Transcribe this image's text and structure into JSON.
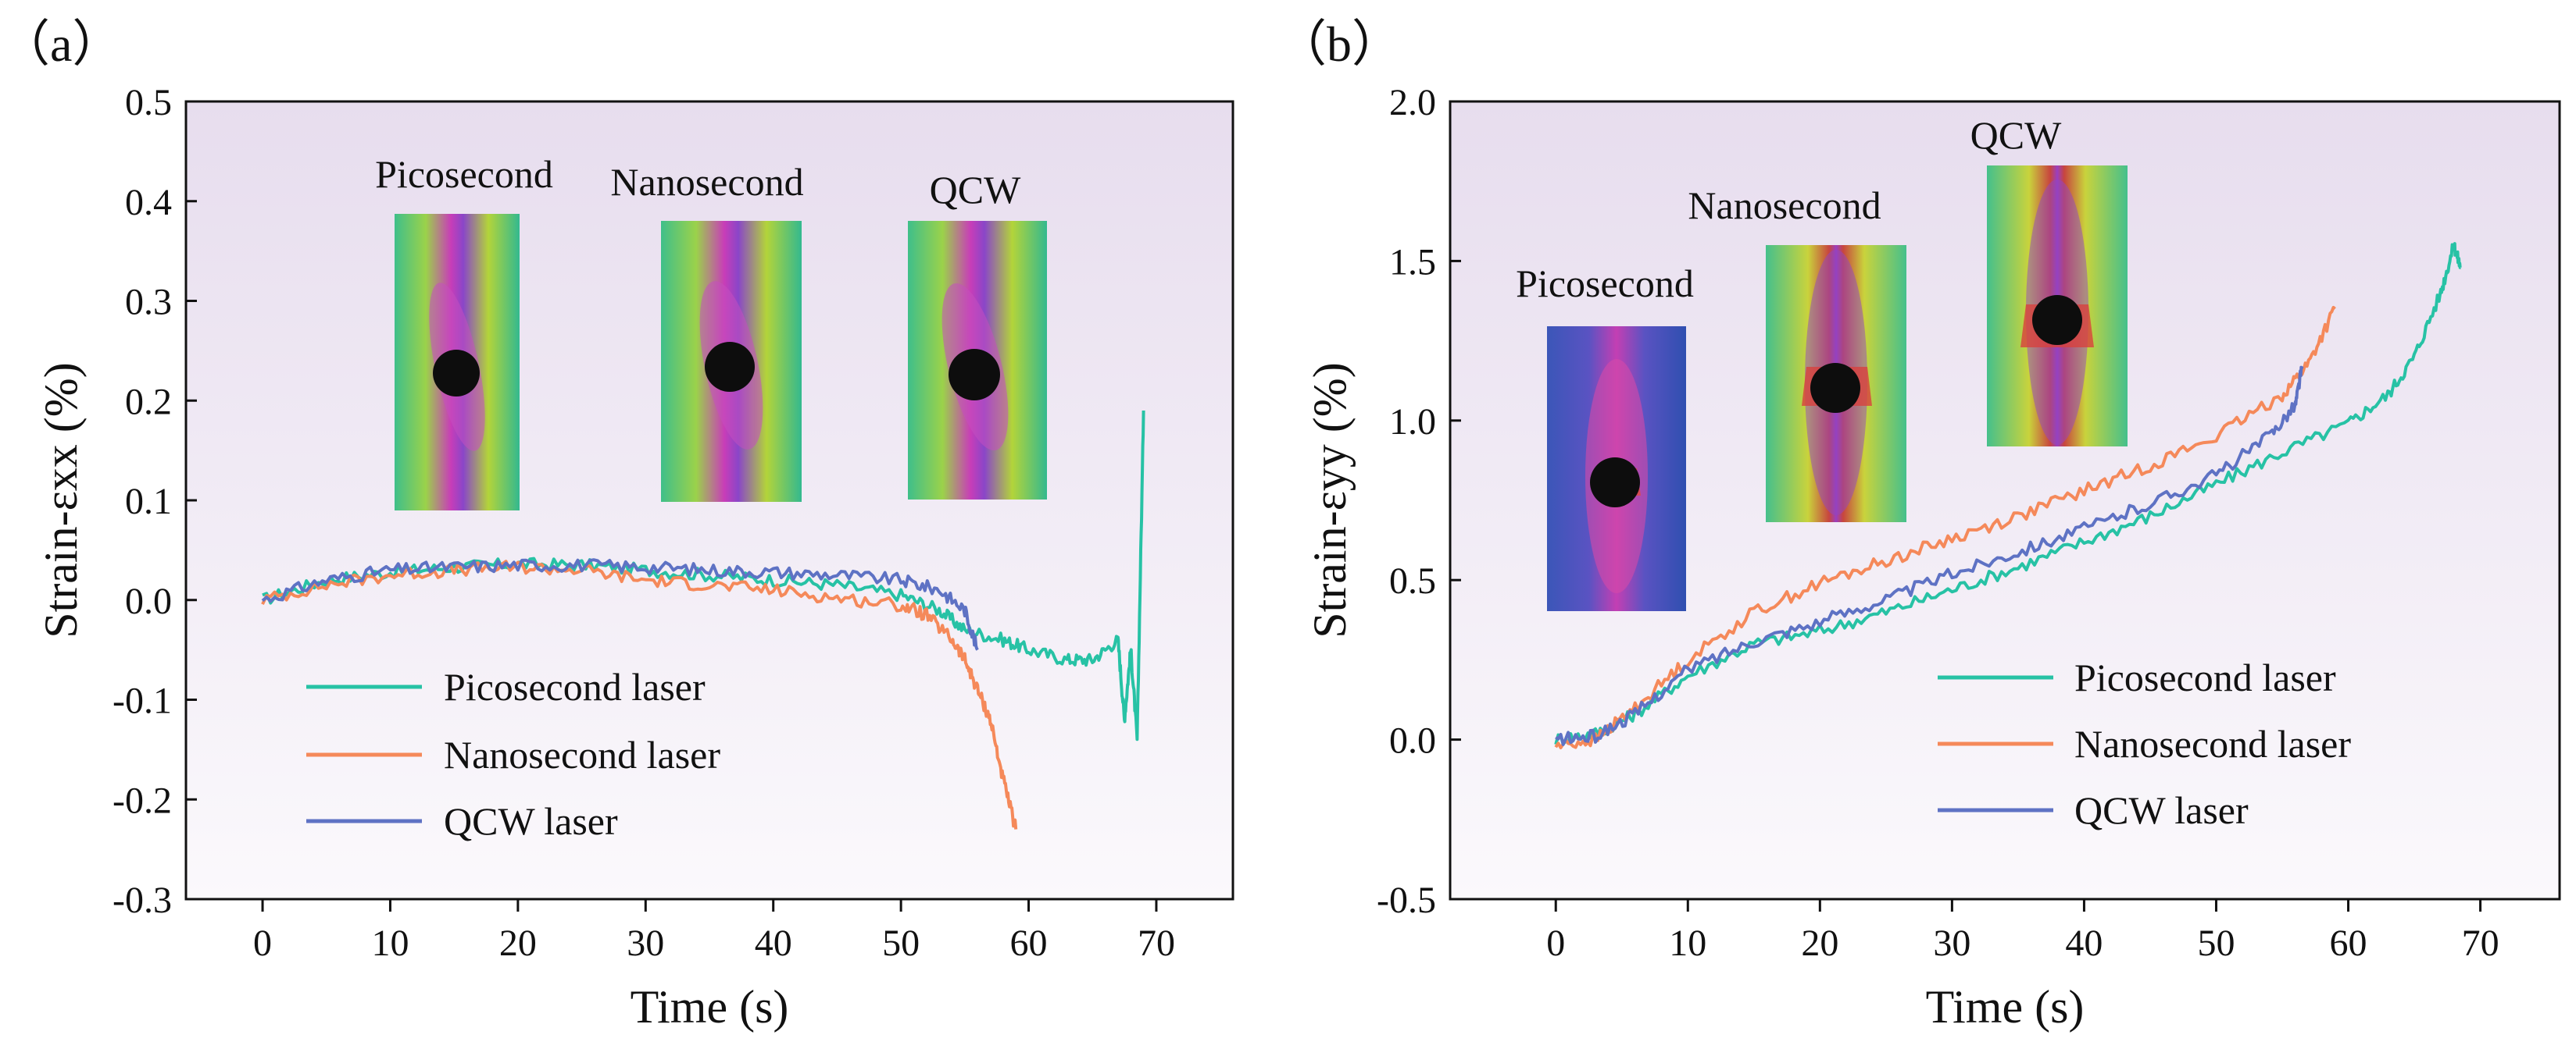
{
  "colors": {
    "picosecond": "#27C2A5",
    "nanosecond": "#F5895A",
    "qcw": "#5E72C4",
    "panel_top": "#E7DDEE",
    "panel_bottom": "#FBF9FC"
  },
  "chart_data": [
    {
      "type": "line",
      "panel_label": "（a）",
      "title": "",
      "xlabel": "Time (s)",
      "ylabel": "Strain-εxx (%)",
      "xlim": [
        -6,
        76
      ],
      "ylim": [
        -0.3,
        0.5
      ],
      "xticks": [
        0,
        10,
        20,
        30,
        40,
        50,
        60,
        70
      ],
      "yticks": [
        -0.3,
        -0.2,
        -0.1,
        0.0,
        0.1,
        0.2,
        0.3,
        0.4,
        0.5
      ],
      "xtick_labels": [
        "0",
        "10",
        "20",
        "30",
        "40",
        "50",
        "60",
        "70"
      ],
      "ytick_labels": [
        "-0.3",
        "-0.2",
        "-0.1",
        "0.0",
        "0.1",
        "0.2",
        "0.3",
        "0.4",
        "0.5"
      ],
      "legend": [
        "Picosecond laser",
        "Nanosecond laser",
        "QCW laser"
      ],
      "legend_position": "bottom-left",
      "inset_labels": [
        "Picosecond",
        "Nanosecond",
        "QCW"
      ],
      "series": [
        {
          "name": "Picosecond laser",
          "color_key": "picosecond",
          "x": [
            0,
            5,
            10,
            15,
            20,
            25,
            30,
            35,
            40,
            45,
            50,
            53,
            55,
            58,
            60,
            63,
            65,
            67,
            67.5,
            68,
            68.5,
            69
          ],
          "y": [
            0.0,
            0.02,
            0.028,
            0.033,
            0.036,
            0.035,
            0.03,
            0.025,
            0.02,
            0.015,
            0.005,
            -0.01,
            -0.03,
            -0.04,
            -0.05,
            -0.06,
            -0.06,
            -0.04,
            -0.12,
            -0.05,
            -0.14,
            0.19
          ]
        },
        {
          "name": "Nanosecond laser",
          "color_key": "nanosecond",
          "x": [
            0,
            5,
            10,
            15,
            20,
            25,
            30,
            35,
            40,
            45,
            50,
            52,
            54,
            55,
            56,
            57,
            58,
            59
          ],
          "y": [
            0.0,
            0.015,
            0.025,
            0.03,
            0.033,
            0.03,
            0.02,
            0.015,
            0.01,
            0.002,
            -0.005,
            -0.015,
            -0.04,
            -0.06,
            -0.09,
            -0.12,
            -0.18,
            -0.23
          ]
        },
        {
          "name": "QCW laser",
          "color_key": "qcw",
          "x": [
            0,
            5,
            10,
            15,
            20,
            25,
            30,
            35,
            40,
            45,
            50,
            53,
            55,
            56
          ],
          "y": [
            0.0,
            0.02,
            0.03,
            0.033,
            0.035,
            0.035,
            0.033,
            0.03,
            0.028,
            0.025,
            0.02,
            0.01,
            -0.01,
            -0.05
          ]
        }
      ]
    },
    {
      "type": "line",
      "panel_label": "（b）",
      "title": "",
      "xlabel": "Time (s)",
      "ylabel": "Strain-εyy (%)",
      "xlim": [
        -8,
        76
      ],
      "ylim": [
        -0.5,
        2.0
      ],
      "xticks": [
        0,
        10,
        20,
        30,
        40,
        50,
        60,
        70
      ],
      "yticks": [
        -0.5,
        0.0,
        0.5,
        1.0,
        1.5,
        2.0
      ],
      "xtick_labels": [
        "0",
        "10",
        "20",
        "30",
        "40",
        "50",
        "60",
        "70"
      ],
      "ytick_labels": [
        "-0.5",
        "0.0",
        "0.5",
        "1.0",
        "1.5",
        "2.0"
      ],
      "legend": [
        "Picosecond laser",
        "Nanosecond laser",
        "QCW laser"
      ],
      "legend_position": "bottom-right",
      "inset_labels": [
        "Picosecond",
        "Nanosecond",
        "QCW"
      ],
      "series": [
        {
          "name": "Picosecond laser",
          "color_key": "picosecond",
          "x": [
            0,
            3,
            6,
            10,
            15,
            20,
            25,
            30,
            35,
            40,
            45,
            50,
            55,
            60,
            63,
            65,
            67,
            68,
            68.5
          ],
          "y": [
            0.0,
            0.02,
            0.08,
            0.2,
            0.3,
            0.34,
            0.4,
            0.47,
            0.54,
            0.62,
            0.7,
            0.8,
            0.9,
            0.99,
            1.08,
            1.2,
            1.4,
            1.55,
            1.48
          ]
        },
        {
          "name": "Nanosecond laser",
          "color_key": "nanosecond",
          "x": [
            0,
            3,
            6,
            10,
            15,
            20,
            25,
            30,
            35,
            40,
            45,
            50,
            55,
            57,
            59
          ],
          "y": [
            -0.02,
            0.0,
            0.1,
            0.25,
            0.4,
            0.49,
            0.56,
            0.63,
            0.7,
            0.78,
            0.86,
            0.95,
            1.08,
            1.18,
            1.35
          ]
        },
        {
          "name": "QCW laser",
          "color_key": "qcw",
          "x": [
            0,
            3,
            6,
            10,
            15,
            20,
            25,
            30,
            35,
            40,
            45,
            50,
            54,
            56,
            56.5
          ],
          "y": [
            0.0,
            0.01,
            0.08,
            0.22,
            0.31,
            0.37,
            0.44,
            0.52,
            0.59,
            0.66,
            0.74,
            0.83,
            0.95,
            1.05,
            1.17
          ]
        }
      ]
    }
  ]
}
